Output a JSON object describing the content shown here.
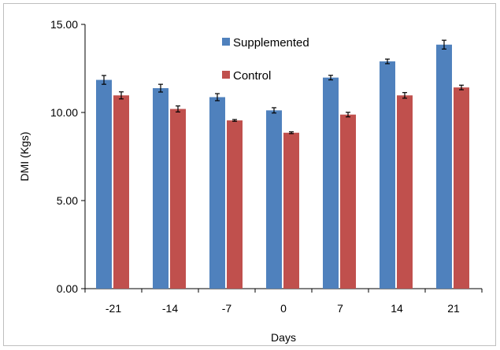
{
  "chart_data": {
    "type": "bar",
    "categories": [
      "-21",
      "-14",
      "-7",
      "0",
      "7",
      "14",
      "21"
    ],
    "series": [
      {
        "name": "Supplemented",
        "values": [
          11.85,
          11.38,
          10.87,
          10.12,
          11.98,
          12.9,
          13.85
        ],
        "errors": [
          0.25,
          0.22,
          0.2,
          0.15,
          0.13,
          0.13,
          0.25
        ],
        "color": "#4f81bd"
      },
      {
        "name": "Control",
        "values": [
          10.97,
          10.2,
          9.55,
          8.85,
          9.88,
          10.97,
          11.42
        ],
        "errors": [
          0.2,
          0.17,
          0.05,
          0.05,
          0.13,
          0.16,
          0.13
        ],
        "color": "#c0504d"
      }
    ],
    "xlabel": "Days",
    "ylabel": "DMI (Kgs)",
    "ylim": [
      0,
      15
    ],
    "yticks": [
      "0.00",
      "5.00",
      "10.00",
      "15.00"
    ],
    "grid": false,
    "legend_position": "top-center"
  }
}
